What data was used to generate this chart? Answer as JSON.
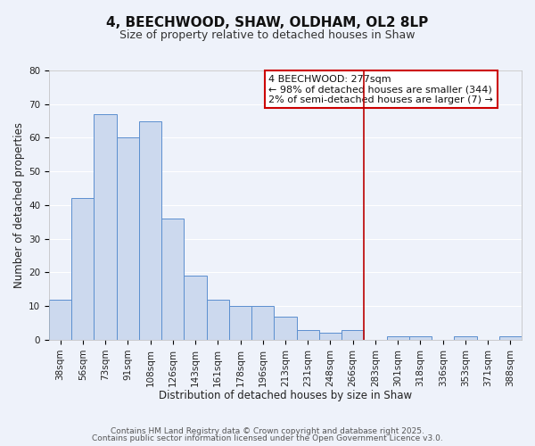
{
  "title": "4, BEECHWOOD, SHAW, OLDHAM, OL2 8LP",
  "subtitle": "Size of property relative to detached houses in Shaw",
  "xlabel": "Distribution of detached houses by size in Shaw",
  "ylabel": "Number of detached properties",
  "bar_labels": [
    "38sqm",
    "56sqm",
    "73sqm",
    "91sqm",
    "108sqm",
    "126sqm",
    "143sqm",
    "161sqm",
    "178sqm",
    "196sqm",
    "213sqm",
    "231sqm",
    "248sqm",
    "266sqm",
    "283sqm",
    "301sqm",
    "318sqm",
    "336sqm",
    "353sqm",
    "371sqm",
    "388sqm"
  ],
  "bar_values": [
    12,
    42,
    67,
    60,
    65,
    36,
    19,
    12,
    10,
    10,
    7,
    3,
    2,
    3,
    0,
    1,
    1,
    0,
    1,
    0,
    1
  ],
  "bar_color": "#ccd9ee",
  "bar_edge_color": "#5b8fcf",
  "background_color": "#eef2fa",
  "grid_color": "#ffffff",
  "vline_color": "#bb0000",
  "vline_x_index": 14,
  "ylim": [
    0,
    80
  ],
  "yticks": [
    0,
    10,
    20,
    30,
    40,
    50,
    60,
    70,
    80
  ],
  "annotation_title": "4 BEECHWOOD: 277sqm",
  "annotation_line1": "← 98% of detached houses are smaller (344)",
  "annotation_line2": "2% of semi-detached houses are larger (7) →",
  "annotation_box_color": "#ffffff",
  "annotation_border_color": "#cc0000",
  "footer_line1": "Contains HM Land Registry data © Crown copyright and database right 2025.",
  "footer_line2": "Contains public sector information licensed under the Open Government Licence v3.0.",
  "title_fontsize": 11,
  "subtitle_fontsize": 9,
  "axis_label_fontsize": 8.5,
  "tick_fontsize": 7.5,
  "annotation_fontsize": 8,
  "footer_fontsize": 6.5
}
